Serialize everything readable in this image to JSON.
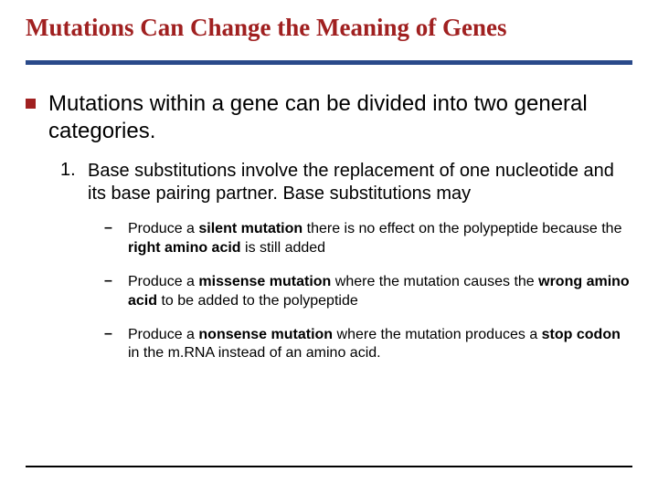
{
  "colors": {
    "title": "#a02020",
    "divider": "#2a4a8a",
    "bullet": "#a02020",
    "text": "#000000",
    "background": "#ffffff"
  },
  "title": "Mutations Can Change the Meaning of Genes",
  "bullet_main": "Mutations within a gene can be divided into two general categories.",
  "numbered": {
    "num": "1.",
    "text": "Base substitutions involve the replacement of one nucleotide and its base pairing partner. Base substitutions may"
  },
  "dash1": {
    "pre": "Produce a ",
    "b1": "silent mutation",
    "mid1": " there is no effect on the polypeptide because the ",
    "b2": "right amino acid",
    "post": " is still added"
  },
  "dash2": {
    "pre": "Produce a ",
    "b1": "missense mutation",
    "mid1": " where the mutation causes the ",
    "b2": "wrong amino acid",
    "post": " to be added to the polypeptide"
  },
  "dash3": {
    "pre": "Produce a ",
    "b1": "nonsense mutation",
    "mid1": " where the mutation produces a ",
    "b2": "stop codon",
    "post": " in the m.RNA instead of an amino acid."
  },
  "dash_char": "–"
}
